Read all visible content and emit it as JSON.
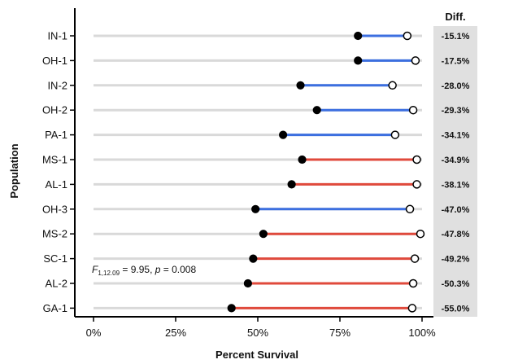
{
  "chart_data": {
    "type": "dumbbell",
    "xlabel": "Percent Survival",
    "ylabel": "Population",
    "xlim": [
      0,
      100
    ],
    "x_ticks": [
      "0%",
      "25%",
      "50%",
      "75%",
      "100%"
    ],
    "x_tick_values": [
      0,
      25,
      50,
      75,
      100
    ],
    "diff_header": "Diff.",
    "grid": false,
    "colors": {
      "blue": "#3c6fe0",
      "red": "#e04a3c",
      "track": "#d9d9d9",
      "diff_panel": "#e0e0e0",
      "filled_point": "#000000",
      "open_point": "#ffffff"
    },
    "rows": [
      {
        "population": "IN-1",
        "filled": 80.5,
        "open": 95.5,
        "diff": "-15.1%",
        "color": "blue"
      },
      {
        "population": "OH-1",
        "filled": 80.5,
        "open": 98.0,
        "diff": "-17.5%",
        "color": "blue"
      },
      {
        "population": "IN-2",
        "filled": 63.0,
        "open": 91.0,
        "diff": "-28.0%",
        "color": "blue"
      },
      {
        "population": "OH-2",
        "filled": 68.0,
        "open": 97.3,
        "diff": "-29.3%",
        "color": "blue"
      },
      {
        "population": "PA-1",
        "filled": 57.7,
        "open": 91.8,
        "diff": "-34.1%",
        "color": "blue"
      },
      {
        "population": "MS-1",
        "filled": 63.5,
        "open": 98.4,
        "diff": "-34.9%",
        "color": "red"
      },
      {
        "population": "AL-1",
        "filled": 60.3,
        "open": 98.4,
        "diff": "-38.1%",
        "color": "red"
      },
      {
        "population": "OH-3",
        "filled": 49.3,
        "open": 96.3,
        "diff": "-47.0%",
        "color": "blue"
      },
      {
        "population": "MS-2",
        "filled": 51.7,
        "open": 99.5,
        "diff": "-47.8%",
        "color": "red"
      },
      {
        "population": "SC-1",
        "filled": 48.6,
        "open": 97.8,
        "diff": "-49.2%",
        "color": "red"
      },
      {
        "population": "AL-2",
        "filled": 47.0,
        "open": 97.3,
        "diff": "-50.3%",
        "color": "red"
      },
      {
        "population": "GA-1",
        "filled": 42.0,
        "open": 97.0,
        "diff": "-55.0%",
        "color": "red"
      }
    ],
    "annotation": {
      "symbol": "F",
      "subscript": "1,12.09",
      "f_text": " = 9.95, ",
      "p_symbol": "p",
      "p_text": " = 0.008"
    }
  }
}
